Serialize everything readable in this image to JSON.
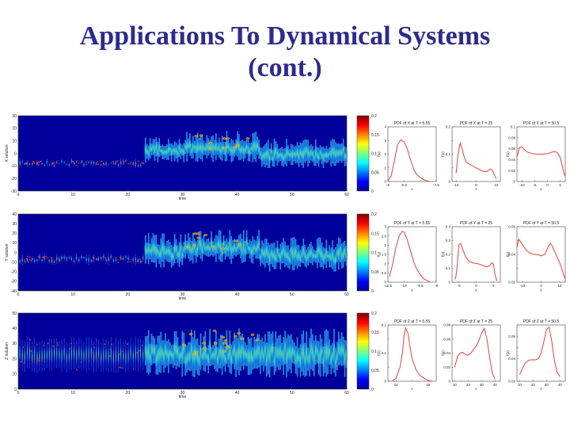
{
  "slide": {
    "title_line1": "Applications To Dynamical Systems",
    "title_line2": "(cont.)"
  },
  "chart_data": [
    {
      "type": "heatmap",
      "ylabel": "X solution",
      "xlabel": "time",
      "xlim": [
        0,
        60
      ],
      "ylim": [
        -30,
        30
      ],
      "x_ticks": [
        0,
        10,
        20,
        30,
        40,
        50,
        60
      ],
      "y_ticks": [
        -30,
        -20,
        -10,
        0,
        10,
        20,
        30
      ],
      "colorbar": {
        "range": [
          0,
          0.2
        ],
        "ticks": [
          "0.2",
          "0.15",
          "0.1",
          "0.05",
          "0"
        ]
      }
    },
    {
      "type": "heatmap",
      "ylabel": "Y solution",
      "xlabel": "time",
      "xlim": [
        0,
        60
      ],
      "ylim": [
        -40,
        40
      ],
      "x_ticks": [
        0,
        10,
        20,
        30,
        40,
        50,
        60
      ],
      "y_ticks": [
        -40,
        -30,
        -20,
        -10,
        0,
        10,
        20,
        30,
        40
      ],
      "colorbar": {
        "range": [
          0,
          0.2
        ],
        "ticks": [
          "0.2",
          "0.15",
          "0.1",
          "0.05",
          "0"
        ]
      }
    },
    {
      "type": "heatmap",
      "ylabel": "Z solution",
      "xlabel": "time",
      "xlim": [
        0,
        60
      ],
      "ylim": [
        0,
        50
      ],
      "x_ticks": [
        0,
        10,
        20,
        30,
        40,
        50,
        60
      ],
      "y_ticks": [
        0,
        10,
        20,
        30,
        40,
        50
      ],
      "colorbar": {
        "range": [
          0,
          0.2
        ],
        "ticks": [
          "0.2",
          "0.15",
          "0.1",
          "0.05",
          "0"
        ]
      }
    },
    {
      "type": "line",
      "title": "PDF of X at T = 5.55",
      "xlabel": "x",
      "ylabel": "f(x)",
      "xlim": [
        -9,
        -7.5
      ],
      "ylim": [
        0,
        4
      ],
      "x_ticks": [
        -9,
        -8.5,
        -8,
        -7.5
      ],
      "x_tick_labels": [
        "-9",
        "-8.5",
        "",
        "-7.5"
      ],
      "y_ticks": [
        0,
        1,
        2,
        3,
        4
      ],
      "x": [
        -9,
        -8.9,
        -8.8,
        -8.7,
        -8.6,
        -8.5,
        -8.4,
        -8.3,
        -8.2,
        -8.1,
        -8,
        -7.9,
        -7.8,
        -7.7
      ],
      "values": [
        0.05,
        0.4,
        1.5,
        2.7,
        3.05,
        2.9,
        2.4,
        1.6,
        0.9,
        0.5,
        0.3,
        0.15,
        0.05,
        0
      ]
    },
    {
      "type": "line",
      "title": "PDF of X at T = 25",
      "xlabel": "x",
      "ylabel": "f(x)",
      "xlim": [
        -12,
        12
      ],
      "ylim": [
        0,
        0.2
      ],
      "x_ticks": [
        -10,
        0,
        10
      ],
      "y_ticks": [
        0,
        0.05,
        0.1,
        0.15,
        0.2
      ],
      "y_tick_labels": [
        "0",
        "",
        "0.1",
        "",
        "0.2"
      ],
      "x": [
        -10,
        -9,
        -8,
        -7,
        -6,
        -5,
        -4,
        -3,
        -2,
        0,
        2,
        4,
        5,
        6,
        7,
        8,
        9,
        10
      ],
      "values": [
        0.03,
        0.1,
        0.14,
        0.12,
        0.09,
        0.07,
        0.066,
        0.062,
        0.058,
        0.05,
        0.042,
        0.036,
        0.036,
        0.04,
        0.046,
        0.042,
        0.025,
        0.01
      ]
    },
    {
      "type": "line",
      "title": "PDF of X at T = 50.5",
      "xlabel": "x",
      "ylabel": "f(x)",
      "xlim": [
        -12,
        7
      ],
      "ylim": [
        0,
        0.1
      ],
      "x_ticks": [
        -10,
        -5,
        0,
        5
      ],
      "y_ticks": [
        0,
        0.02,
        0.04,
        0.06,
        0.08,
        0.1
      ],
      "x": [
        -12,
        -11,
        -10,
        -9,
        -8,
        -6,
        -4,
        -2,
        0,
        2,
        3,
        4,
        5,
        6,
        6.8
      ],
      "values": [
        0.045,
        0.062,
        0.063,
        0.058,
        0.054,
        0.051,
        0.05,
        0.05,
        0.051,
        0.054,
        0.055,
        0.052,
        0.044,
        0.025,
        0.01
      ]
    },
    {
      "type": "line",
      "title": "PDF of Y at T = 5.55",
      "xlabel": "y",
      "ylabel": "f(y)",
      "xlim": [
        -10.5,
        -9
      ],
      "ylim": [
        0,
        3
      ],
      "x_ticks": [
        -10.5,
        -10,
        -9.5,
        -9
      ],
      "y_ticks": [
        0,
        0.5,
        1,
        1.5,
        2,
        2.5,
        3
      ],
      "x": [
        -10.45,
        -10.35,
        -10.25,
        -10.15,
        -10.05,
        -10,
        -9.9,
        -9.8,
        -9.7,
        -9.6,
        -9.5,
        -9.4,
        -9.3,
        -9.2
      ],
      "values": [
        0.3,
        1.0,
        1.9,
        2.5,
        2.75,
        2.7,
        2.3,
        1.7,
        1.1,
        0.7,
        0.4,
        0.2,
        0.1,
        0.03
      ]
    },
    {
      "type": "line",
      "title": "PDF of Y at T = 25",
      "xlabel": "y",
      "ylabel": "f(y)",
      "xlim": [
        -7,
        7
      ],
      "ylim": [
        0,
        0.4
      ],
      "x_ticks": [
        -5,
        0,
        5
      ],
      "y_ticks": [
        0,
        0.1,
        0.2,
        0.3,
        0.4
      ],
      "x": [
        -6,
        -5.5,
        -5,
        -4.5,
        -4,
        -3,
        -2,
        -1,
        0,
        1,
        2,
        3,
        4,
        4.5,
        5,
        5.5,
        6
      ],
      "values": [
        0.02,
        0.12,
        0.27,
        0.28,
        0.24,
        0.18,
        0.15,
        0.14,
        0.135,
        0.13,
        0.12,
        0.11,
        0.12,
        0.14,
        0.13,
        0.05,
        0.01
      ]
    },
    {
      "type": "line",
      "title": "PDF of Y at T = 50.5",
      "xlabel": "y",
      "ylabel": "f(y)",
      "xlim": [
        -13,
        13
      ],
      "ylim": [
        0.02,
        0.06
      ],
      "x_ticks": [
        -10,
        0,
        10
      ],
      "y_ticks": [
        0.02,
        0.03,
        0.04,
        0.05,
        0.06
      ],
      "y_tick_labels": [
        "0.02",
        "",
        "0.04",
        "",
        "0.06"
      ],
      "x": [
        -13,
        -12,
        -10,
        -8,
        -6,
        -4,
        -2,
        0,
        2,
        4,
        5,
        6,
        8,
        10,
        12,
        13
      ],
      "values": [
        0.045,
        0.051,
        0.047,
        0.043,
        0.041,
        0.04,
        0.04,
        0.039,
        0.04,
        0.046,
        0.048,
        0.046,
        0.04,
        0.034,
        0.026,
        0.022
      ]
    },
    {
      "type": "line",
      "title": "PDF of Z at T = 5.55",
      "xlabel": "z",
      "ylabel": "f(z)",
      "xlim": [
        23,
        29
      ],
      "ylim": [
        0,
        0.2
      ],
      "x_ticks": [
        24,
        26,
        28
      ],
      "x_tick_labels": [
        "24",
        "",
        "28"
      ],
      "y_ticks": [
        0,
        0.05,
        0.1,
        0.15,
        0.2
      ],
      "y_tick_labels": [
        "0",
        "",
        "0.1",
        "",
        "0.2"
      ],
      "x": [
        23.5,
        24,
        24.5,
        24.8,
        25,
        25.2,
        25.5,
        25.8,
        26,
        26.5,
        27,
        27.5,
        28,
        28.5
      ],
      "values": [
        0,
        0.01,
        0.05,
        0.1,
        0.16,
        0.19,
        0.17,
        0.11,
        0.08,
        0.04,
        0.02,
        0.01,
        0.003,
        0
      ]
    },
    {
      "type": "line",
      "title": "PDF of Z at T = 25",
      "xlabel": "z",
      "ylabel": "f(z)",
      "xlim": [
        8,
        44
      ],
      "ylim": [
        0,
        0.08
      ],
      "x_ticks": [
        10,
        20,
        30,
        40
      ],
      "y_ticks": [
        0,
        0.02,
        0.04,
        0.06,
        0.08
      ],
      "x": [
        10,
        12,
        14,
        16,
        18,
        20,
        22,
        24,
        26,
        28,
        30,
        32,
        34,
        36,
        38,
        40
      ],
      "values": [
        0.02,
        0.035,
        0.04,
        0.041,
        0.038,
        0.037,
        0.04,
        0.045,
        0.05,
        0.058,
        0.068,
        0.075,
        0.06,
        0.035,
        0.012,
        0.003
      ]
    },
    {
      "type": "line",
      "title": "PDF of Z at T = 50.5",
      "xlabel": "z",
      "ylabel": "f(z)",
      "xlim": [
        8,
        44
      ],
      "ylim": [
        0.02,
        0.07
      ],
      "x_ticks": [
        10,
        20,
        30,
        40
      ],
      "y_ticks": [
        0.02,
        0.03,
        0.04,
        0.05,
        0.06,
        0.07
      ],
      "y_tick_labels": [
        "0.02",
        "",
        "0.04",
        "",
        "0.06",
        ""
      ],
      "x": [
        10,
        12,
        14,
        16,
        18,
        20,
        22,
        24,
        26,
        28,
        30,
        32,
        34,
        36,
        38,
        40
      ],
      "values": [
        0.026,
        0.031,
        0.036,
        0.038,
        0.039,
        0.039,
        0.039,
        0.04,
        0.045,
        0.055,
        0.066,
        0.068,
        0.055,
        0.038,
        0.028,
        0.024
      ]
    }
  ]
}
